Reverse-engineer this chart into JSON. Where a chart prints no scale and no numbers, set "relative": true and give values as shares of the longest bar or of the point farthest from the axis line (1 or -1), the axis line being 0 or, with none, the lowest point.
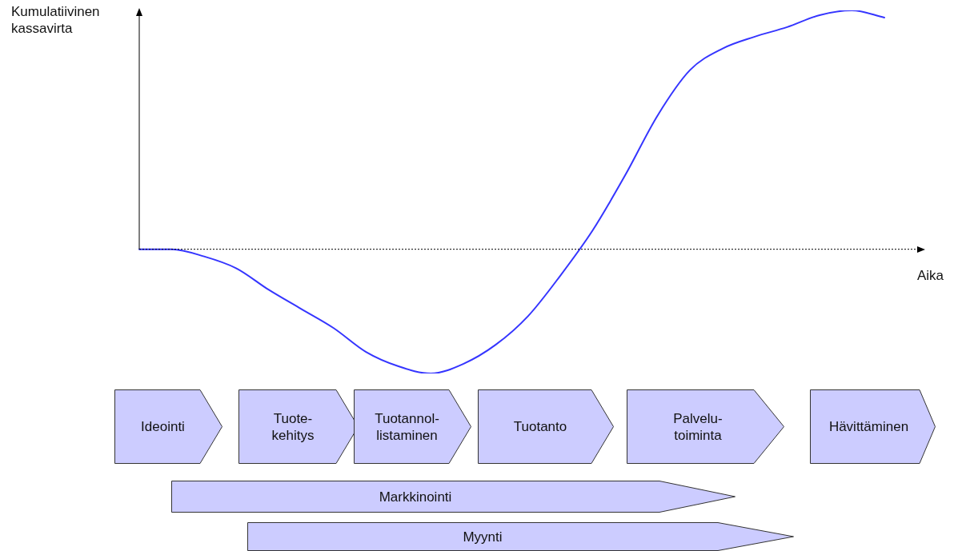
{
  "chart_data": {
    "type": "line",
    "relative": true,
    "ylabel": "Kumulatiivinen kassavirta",
    "xlabel": "Aika",
    "categories": [
      null,
      null,
      null,
      null,
      null,
      null,
      null,
      null,
      null,
      null,
      null,
      null,
      null,
      null,
      null,
      null,
      null,
      null,
      null,
      null,
      null,
      null,
      null,
      null
    ],
    "series": [
      {
        "color": "#3535ff",
        "values": [
          0,
          0,
          -0.03,
          -0.08,
          -0.17,
          -0.25,
          -0.33,
          -0.43,
          -0.49,
          -0.52,
          -0.48,
          -0.4,
          -0.28,
          -0.11,
          0.08,
          0.31,
          0.56,
          0.75,
          0.84,
          0.89,
          0.93,
          0.98,
          1,
          0.97
        ]
      }
    ],
    "annotations": [
      "Ideointi",
      "Tuote-\nkehitys",
      "Tuotannol-\nlistaminen",
      "Tuotanto",
      "Palvelu-\ntoiminta",
      "Hävittäminen",
      "Markkinointi",
      "Myynti"
    ],
    "ref_lines": [
      {
        "axis": "y",
        "value": 0,
        "color": "#000000",
        "line_style": "dotted"
      }
    ],
    "legend": false,
    "grid": false,
    "marker": "none",
    "line_style": "solid"
  }
}
